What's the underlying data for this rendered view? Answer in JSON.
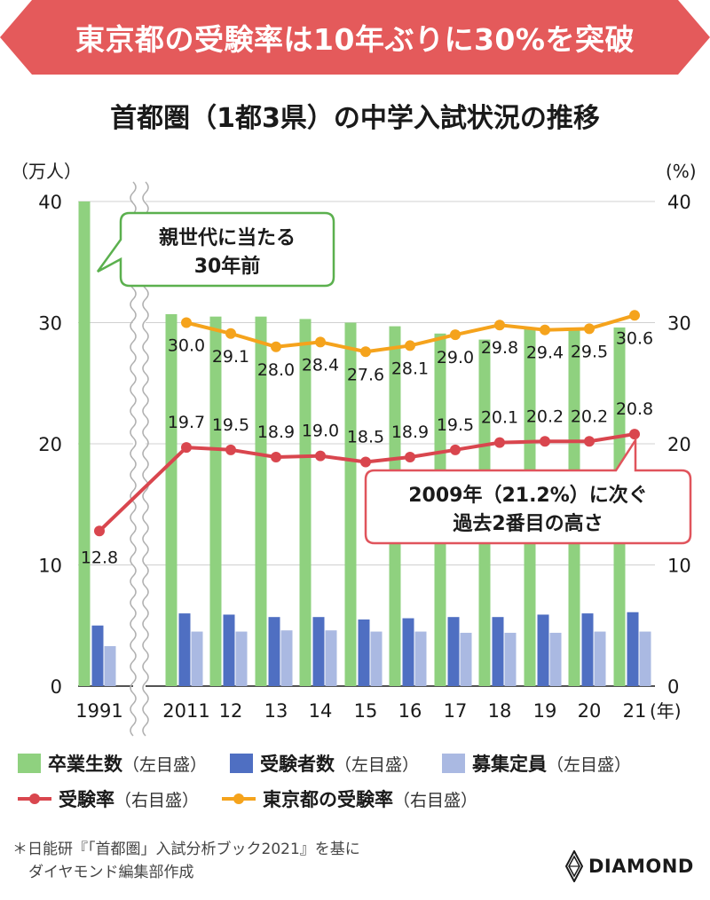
{
  "banner": {
    "text": "東京都の受験率は10年ぶりに30%を突破",
    "color": "#e45a5b"
  },
  "chart_title": "首都圏（1都3県）の中学入試状況の推移",
  "chart_data": {
    "type": "bar",
    "categories": [
      "1991",
      "2011",
      "12",
      "13",
      "14",
      "15",
      "16",
      "17",
      "18",
      "19",
      "20",
      "21"
    ],
    "x_unit": "(年)",
    "y_left": {
      "unit": "（万人）",
      "ylim": [
        0,
        40
      ],
      "ticks": [
        0,
        10,
        20,
        30,
        40
      ]
    },
    "y_right": {
      "unit": "(%)",
      "ylim": [
        0,
        40
      ],
      "ticks": [
        0,
        10,
        20,
        30,
        40
      ]
    },
    "grid": true,
    "axis_break": "between 1991 and 2011",
    "series": [
      {
        "name": "卒業生数",
        "axis": "（左目盛）",
        "type": "bar",
        "color": "#8fd17f",
        "values": [
          40.0,
          30.7,
          30.5,
          30.5,
          30.3,
          30.0,
          29.7,
          29.1,
          28.6,
          29.5,
          29.4,
          29.6
        ]
      },
      {
        "name": "受験者数",
        "axis": "（左目盛）",
        "type": "bar",
        "color": "#4f6fc2",
        "values": [
          5.0,
          6.0,
          5.9,
          5.7,
          5.7,
          5.5,
          5.6,
          5.7,
          5.7,
          5.9,
          6.0,
          6.1
        ]
      },
      {
        "name": "募集定員",
        "axis": "（左目盛）",
        "type": "bar",
        "color": "#aab9e2",
        "values": [
          3.3,
          4.5,
          4.5,
          4.6,
          4.6,
          4.5,
          4.5,
          4.4,
          4.4,
          4.4,
          4.5,
          4.5
        ]
      },
      {
        "name": "受験率",
        "axis": "（右目盛）",
        "type": "line",
        "color": "#d9464e",
        "values": [
          12.8,
          19.7,
          19.5,
          18.9,
          19.0,
          18.5,
          18.9,
          19.5,
          20.1,
          20.2,
          20.2,
          20.8
        ],
        "labels": [
          "12.8",
          "19.7",
          "19.5",
          "18.9",
          "19.0",
          "18.5",
          "18.9",
          "19.5",
          "20.1",
          "20.2",
          "20.2",
          "20.8"
        ]
      },
      {
        "name": "東京都の受験率",
        "axis": "（右目盛）",
        "type": "line",
        "color": "#f5a31c",
        "values": [
          null,
          30.0,
          29.1,
          28.0,
          28.4,
          27.6,
          28.1,
          29.0,
          29.8,
          29.4,
          29.5,
          30.6
        ],
        "labels": [
          "",
          "30.0",
          "29.1",
          "28.0",
          "28.4",
          "27.6",
          "28.1",
          "29.0",
          "29.8",
          "29.4",
          "29.5",
          "30.6"
        ]
      }
    ],
    "annotations": [
      {
        "id": "green",
        "lines": [
          "親世代に当たる",
          "30年前"
        ],
        "border": "#5bb04e"
      },
      {
        "id": "red",
        "lines": [
          "2009年（21.2%）に次ぐ",
          "過去2番目の高さ"
        ],
        "border": "#e0545c"
      }
    ]
  },
  "source": [
    "＊日能研『「首都圏」入試分析ブック2021』を基に",
    "ダイヤモンド編集部作成"
  ],
  "logo": {
    "text": "DIAMOND",
    "icon": "diamond-logo-icon"
  }
}
